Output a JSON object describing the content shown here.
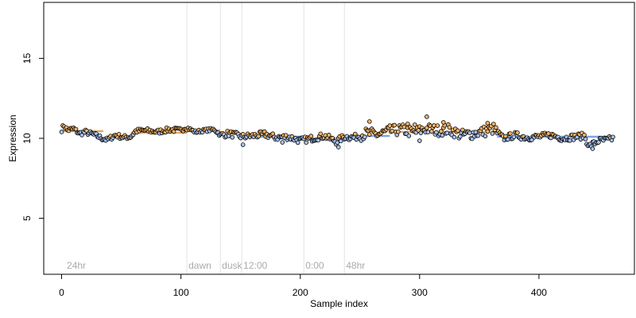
{
  "chart_data": {
    "type": "scatter",
    "title": "",
    "xlabel": "Sample index",
    "ylabel": "Expression",
    "xlim": [
      -15,
      480
    ],
    "ylim": [
      1.5,
      18.5
    ],
    "x_ticks": [
      0,
      100,
      200,
      300,
      400
    ],
    "y_ticks": [
      5,
      10,
      15
    ],
    "grid": false,
    "legend": "none",
    "colors": {
      "point_warm": "#f2b56a",
      "point_cool": "#a9c3ee",
      "point_edge": "#000000",
      "trend_warm": "#e8a96a",
      "trend_cool": "#7ea3e0",
      "marker_line": "#e3e3e3",
      "marker_text": "#aaaaaa"
    },
    "markers": [
      {
        "x": 3,
        "label": "24hr"
      },
      {
        "x": 105,
        "label": "dawn"
      },
      {
        "x": 133,
        "label": "dusk"
      },
      {
        "x": 151,
        "label": "12:00"
      },
      {
        "x": 203,
        "label": "0:00"
      },
      {
        "x": 237,
        "label": "48hr"
      }
    ],
    "trend": [
      {
        "x0": 0,
        "x1": 35,
        "y": 10.45,
        "group": "warm"
      },
      {
        "x0": 35,
        "x1": 58,
        "y": 10.05,
        "group": "cool"
      },
      {
        "x0": 58,
        "x1": 105,
        "y": 10.35,
        "group": "warm"
      },
      {
        "x0": 105,
        "x1": 133,
        "y": 10.5,
        "group": "warm"
      },
      {
        "x0": 133,
        "x1": 151,
        "y": 10.3,
        "group": "warm"
      },
      {
        "x0": 151,
        "x1": 203,
        "y": 10.1,
        "group": "cool"
      },
      {
        "x0": 203,
        "x1": 237,
        "y": 10.0,
        "group": "cool"
      },
      {
        "x0": 237,
        "x1": 275,
        "y": 10.15,
        "group": "cool"
      },
      {
        "x0": 275,
        "x1": 365,
        "y": 10.4,
        "group": "warm"
      },
      {
        "x0": 365,
        "x1": 440,
        "y": 10.1,
        "group": "cool"
      },
      {
        "x0": 440,
        "x1": 462,
        "y": 10.1,
        "group": "cool"
      }
    ],
    "anchors": [
      [
        0,
        10.55
      ],
      [
        2,
        10.8
      ],
      [
        5,
        10.5
      ],
      [
        10,
        10.6
      ],
      [
        15,
        10.3
      ],
      [
        20,
        10.4
      ],
      [
        28,
        10.2
      ],
      [
        34,
        10.0
      ],
      [
        38,
        9.9
      ],
      [
        45,
        10.2
      ],
      [
        52,
        10.05
      ],
      [
        58,
        10.1
      ],
      [
        62,
        10.45
      ],
      [
        70,
        10.5
      ],
      [
        80,
        10.4
      ],
      [
        90,
        10.55
      ],
      [
        100,
        10.5
      ],
      [
        104,
        10.7
      ],
      [
        112,
        10.4
      ],
      [
        120,
        10.5
      ],
      [
        128,
        10.55
      ],
      [
        133,
        10.2
      ],
      [
        140,
        10.3
      ],
      [
        151,
        10.1
      ],
      [
        160,
        10.15
      ],
      [
        170,
        10.25
      ],
      [
        180,
        10.05
      ],
      [
        190,
        10.1
      ],
      [
        200,
        9.85
      ],
      [
        210,
        10.0
      ],
      [
        220,
        10.15
      ],
      [
        230,
        9.8
      ],
      [
        237,
        10.1
      ],
      [
        245,
        10.05
      ],
      [
        255,
        10.3
      ],
      [
        265,
        10.25
      ],
      [
        275,
        10.45
      ],
      [
        285,
        10.55
      ],
      [
        295,
        10.35
      ],
      [
        305,
        10.6
      ],
      [
        315,
        10.5
      ],
      [
        325,
        10.55
      ],
      [
        335,
        10.2
      ],
      [
        345,
        10.3
      ],
      [
        355,
        10.45
      ],
      [
        362,
        10.6
      ],
      [
        370,
        10.0
      ],
      [
        380,
        10.2
      ],
      [
        390,
        10.05
      ],
      [
        400,
        10.1
      ],
      [
        410,
        10.2
      ],
      [
        420,
        10.0
      ],
      [
        430,
        10.1
      ],
      [
        438,
        10.15
      ],
      [
        442,
        9.5
      ],
      [
        450,
        9.85
      ],
      [
        458,
        9.9
      ],
      [
        462,
        10.0
      ]
    ],
    "n_points": 463,
    "noise": [
      {
        "x0": 0,
        "x1": 105,
        "amp": 0.15
      },
      {
        "x0": 105,
        "x1": 133,
        "amp": 0.1
      },
      {
        "x0": 133,
        "x1": 250,
        "amp": 0.2
      },
      {
        "x0": 250,
        "x1": 365,
        "amp": 0.35
      },
      {
        "x0": 365,
        "x1": 462,
        "amp": 0.2
      }
    ],
    "outliers": [
      [
        258,
        11.05
      ],
      [
        306,
        11.35
      ],
      [
        320,
        11.0
      ],
      [
        290,
        10.9
      ],
      [
        296,
        10.85
      ],
      [
        312,
        10.8
      ],
      [
        357,
        10.95
      ],
      [
        232,
        9.45
      ],
      [
        185,
        9.75
      ],
      [
        152,
        9.6
      ],
      [
        445,
        9.35
      ],
      [
        300,
        9.85
      ]
    ]
  }
}
